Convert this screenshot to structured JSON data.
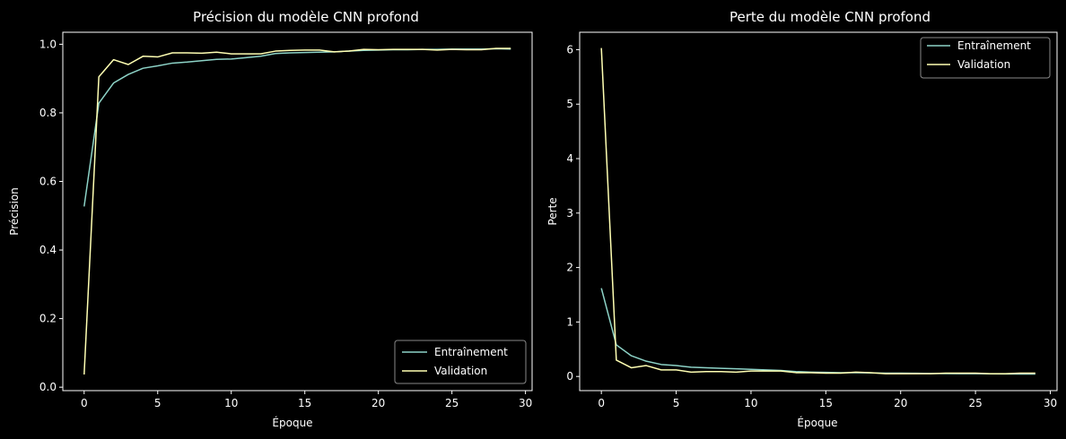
{
  "colors": {
    "background": "#000000",
    "foreground": "#ffffff",
    "train": "#8dd3c7",
    "validation": "#ffffb3",
    "legend_border": "#888888"
  },
  "chart_data": [
    {
      "type": "line",
      "title": "Précision du modèle CNN profond",
      "xlabel": "Époque",
      "ylabel": "Précision",
      "xlim": [
        -1.45,
        30.45
      ],
      "ylim": [
        -0.01,
        1.035
      ],
      "xticks": [
        0,
        5,
        10,
        15,
        20,
        25,
        30
      ],
      "yticks": [
        0.0,
        0.2,
        0.4,
        0.6,
        0.8,
        1.0
      ],
      "ytick_labels": [
        "0.0",
        "0.2",
        "0.4",
        "0.6",
        "0.8",
        "1.0"
      ],
      "legend_position": "lower-right",
      "grid": false,
      "x": [
        0,
        1,
        2,
        3,
        4,
        5,
        6,
        7,
        8,
        9,
        10,
        11,
        12,
        13,
        14,
        15,
        16,
        17,
        18,
        19,
        20,
        21,
        22,
        23,
        24,
        25,
        26,
        27,
        28,
        29
      ],
      "series": [
        {
          "name": "Entraînement",
          "color": "#8dd3c7",
          "values": [
            0.527,
            0.828,
            0.887,
            0.912,
            0.93,
            0.937,
            0.945,
            0.948,
            0.952,
            0.956,
            0.957,
            0.961,
            0.965,
            0.973,
            0.975,
            0.976,
            0.977,
            0.978,
            0.98,
            0.982,
            0.983,
            0.984,
            0.984,
            0.985,
            0.985,
            0.986,
            0.986,
            0.986,
            0.987,
            0.986
          ]
        },
        {
          "name": "Validation",
          "color": "#ffffb3",
          "values": [
            0.037,
            0.905,
            0.955,
            0.941,
            0.965,
            0.963,
            0.975,
            0.975,
            0.974,
            0.977,
            0.972,
            0.972,
            0.972,
            0.98,
            0.982,
            0.983,
            0.983,
            0.978,
            0.98,
            0.985,
            0.984,
            0.985,
            0.985,
            0.985,
            0.983,
            0.985,
            0.984,
            0.984,
            0.988,
            0.988
          ]
        }
      ]
    },
    {
      "type": "line",
      "title": "Perte du modèle CNN profond",
      "xlabel": "Époque",
      "ylabel": "Perte",
      "xlim": [
        -1.45,
        30.45
      ],
      "ylim": [
        -0.26,
        6.32
      ],
      "xticks": [
        0,
        5,
        10,
        15,
        20,
        25,
        30
      ],
      "yticks": [
        0,
        1,
        2,
        3,
        4,
        5,
        6
      ],
      "ytick_labels": [
        "0",
        "1",
        "2",
        "3",
        "4",
        "5",
        "6"
      ],
      "legend_position": "upper-right",
      "grid": false,
      "x": [
        0,
        1,
        2,
        3,
        4,
        5,
        6,
        7,
        8,
        9,
        10,
        11,
        12,
        13,
        14,
        15,
        16,
        17,
        18,
        19,
        20,
        21,
        22,
        23,
        24,
        25,
        26,
        27,
        28,
        29
      ],
      "series": [
        {
          "name": "Entraînement",
          "color": "#8dd3c7",
          "values": [
            1.62,
            0.58,
            0.38,
            0.28,
            0.22,
            0.2,
            0.17,
            0.16,
            0.15,
            0.14,
            0.13,
            0.12,
            0.11,
            0.09,
            0.08,
            0.075,
            0.07,
            0.07,
            0.065,
            0.06,
            0.06,
            0.058,
            0.055,
            0.053,
            0.05,
            0.05,
            0.048,
            0.046,
            0.045,
            0.045
          ]
        },
        {
          "name": "Validation",
          "color": "#ffffb3",
          "values": [
            6.03,
            0.3,
            0.16,
            0.2,
            0.12,
            0.12,
            0.08,
            0.09,
            0.09,
            0.08,
            0.1,
            0.1,
            0.1,
            0.07,
            0.07,
            0.06,
            0.06,
            0.08,
            0.07,
            0.05,
            0.05,
            0.05,
            0.05,
            0.06,
            0.06,
            0.06,
            0.05,
            0.05,
            0.06,
            0.06
          ]
        }
      ]
    }
  ]
}
